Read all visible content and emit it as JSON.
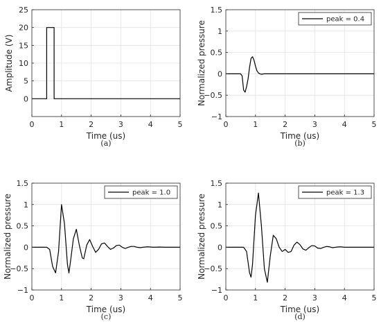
{
  "chart_data": [
    {
      "type": "line",
      "caption": "(a)",
      "xlabel": "Time (us)",
      "ylabel": "Amplitude (V)",
      "xlim": [
        0,
        5
      ],
      "ylim": [
        -5,
        25
      ],
      "xticks": [
        0,
        1,
        2,
        3,
        4,
        5
      ],
      "yticks": [
        0,
        5,
        10,
        15,
        20,
        25
      ],
      "grid": true,
      "legend": null,
      "series": [
        {
          "x": [
            0,
            0.5,
            0.5,
            0.75,
            0.75,
            5
          ],
          "y": [
            0,
            0,
            20,
            20,
            0,
            0
          ]
        }
      ]
    },
    {
      "type": "line",
      "caption": "(b)",
      "xlabel": "Time (us)",
      "ylabel": "Normalized pressure",
      "xlim": [
        0,
        5
      ],
      "ylim": [
        -1,
        1.5
      ],
      "xticks": [
        0,
        1,
        2,
        3,
        4,
        5
      ],
      "yticks": [
        -1,
        -0.5,
        0,
        0.5,
        1,
        1.5
      ],
      "grid": true,
      "legend": {
        "text": "peak = 0.4",
        "position": "top-right"
      },
      "series": [
        {
          "x": [
            0,
            0.5,
            0.55,
            0.6,
            0.65,
            0.7,
            0.75,
            0.8,
            0.85,
            0.9,
            0.95,
            1.0,
            1.05,
            1.1,
            1.15,
            1.2,
            1.3,
            1.4,
            5
          ],
          "y": [
            0,
            0,
            -0.05,
            -0.38,
            -0.43,
            -0.3,
            -0.12,
            0.15,
            0.36,
            0.4,
            0.32,
            0.18,
            0.07,
            0.02,
            0.0,
            -0.01,
            0.0,
            0,
            0
          ]
        }
      ]
    },
    {
      "type": "line",
      "caption": "(c)",
      "xlabel": "Time (us)",
      "ylabel": "Normalized pressure",
      "xlim": [
        0,
        5
      ],
      "ylim": [
        -1,
        1.5
      ],
      "xticks": [
        0,
        1,
        2,
        3,
        4,
        5
      ],
      "yticks": [
        -1,
        -0.5,
        0,
        0.5,
        1,
        1.5
      ],
      "grid": true,
      "legend": {
        "text": "peak = 1.0",
        "position": "top-right"
      },
      "series": [
        {
          "x": [
            0,
            0.5,
            0.6,
            0.7,
            0.8,
            0.9,
            1.0,
            1.1,
            1.2,
            1.25,
            1.3,
            1.4,
            1.5,
            1.6,
            1.7,
            1.75,
            1.85,
            1.95,
            2.05,
            2.15,
            2.25,
            2.35,
            2.45,
            2.55,
            2.65,
            2.75,
            2.85,
            2.95,
            3.05,
            3.15,
            3.25,
            3.35,
            3.45,
            3.55,
            3.65,
            3.75,
            3.9,
            4.1,
            4.3,
            4.5,
            5
          ],
          "y": [
            0,
            0,
            -0.05,
            -0.45,
            -0.6,
            -0.1,
            1.0,
            0.55,
            -0.4,
            -0.6,
            -0.35,
            0.2,
            0.42,
            0.05,
            -0.25,
            -0.27,
            0.05,
            0.18,
            0.02,
            -0.12,
            -0.05,
            0.08,
            0.1,
            0.02,
            -0.05,
            -0.02,
            0.04,
            0.05,
            0.0,
            -0.03,
            0.0,
            0.02,
            0.02,
            0.0,
            -0.01,
            0.0,
            0.01,
            0.0,
            0.005,
            0,
            0
          ]
        }
      ]
    },
    {
      "type": "line",
      "caption": "(d)",
      "xlabel": "Time (us)",
      "ylabel": "Normalized pressure",
      "xlim": [
        0,
        5
      ],
      "ylim": [
        -1,
        1.5
      ],
      "xticks": [
        0,
        1,
        2,
        3,
        4,
        5
      ],
      "yticks": [
        -1,
        -0.5,
        0,
        0.5,
        1,
        1.5
      ],
      "grid": true,
      "legend": {
        "text": "peak = 1.3",
        "position": "top-right"
      },
      "series": [
        {
          "x": [
            0,
            0.6,
            0.7,
            0.8,
            0.85,
            0.9,
            1.0,
            1.1,
            1.2,
            1.3,
            1.4,
            1.5,
            1.6,
            1.7,
            1.8,
            1.9,
            2.0,
            2.1,
            2.2,
            2.3,
            2.4,
            2.5,
            2.6,
            2.7,
            2.8,
            2.9,
            3.0,
            3.1,
            3.2,
            3.3,
            3.4,
            3.5,
            3.6,
            3.7,
            3.85,
            4.0,
            4.2,
            4.5,
            5
          ],
          "y": [
            0,
            0,
            -0.1,
            -0.6,
            -0.7,
            -0.4,
            0.75,
            1.27,
            0.5,
            -0.5,
            -0.82,
            -0.2,
            0.28,
            0.2,
            0.0,
            -0.1,
            -0.05,
            -0.12,
            -0.1,
            0.05,
            0.12,
            0.06,
            -0.04,
            -0.07,
            -0.01,
            0.04,
            0.03,
            -0.02,
            -0.03,
            0.0,
            0.02,
            0.01,
            -0.01,
            0.0,
            0.01,
            0,
            0,
            0,
            0
          ]
        }
      ]
    }
  ]
}
